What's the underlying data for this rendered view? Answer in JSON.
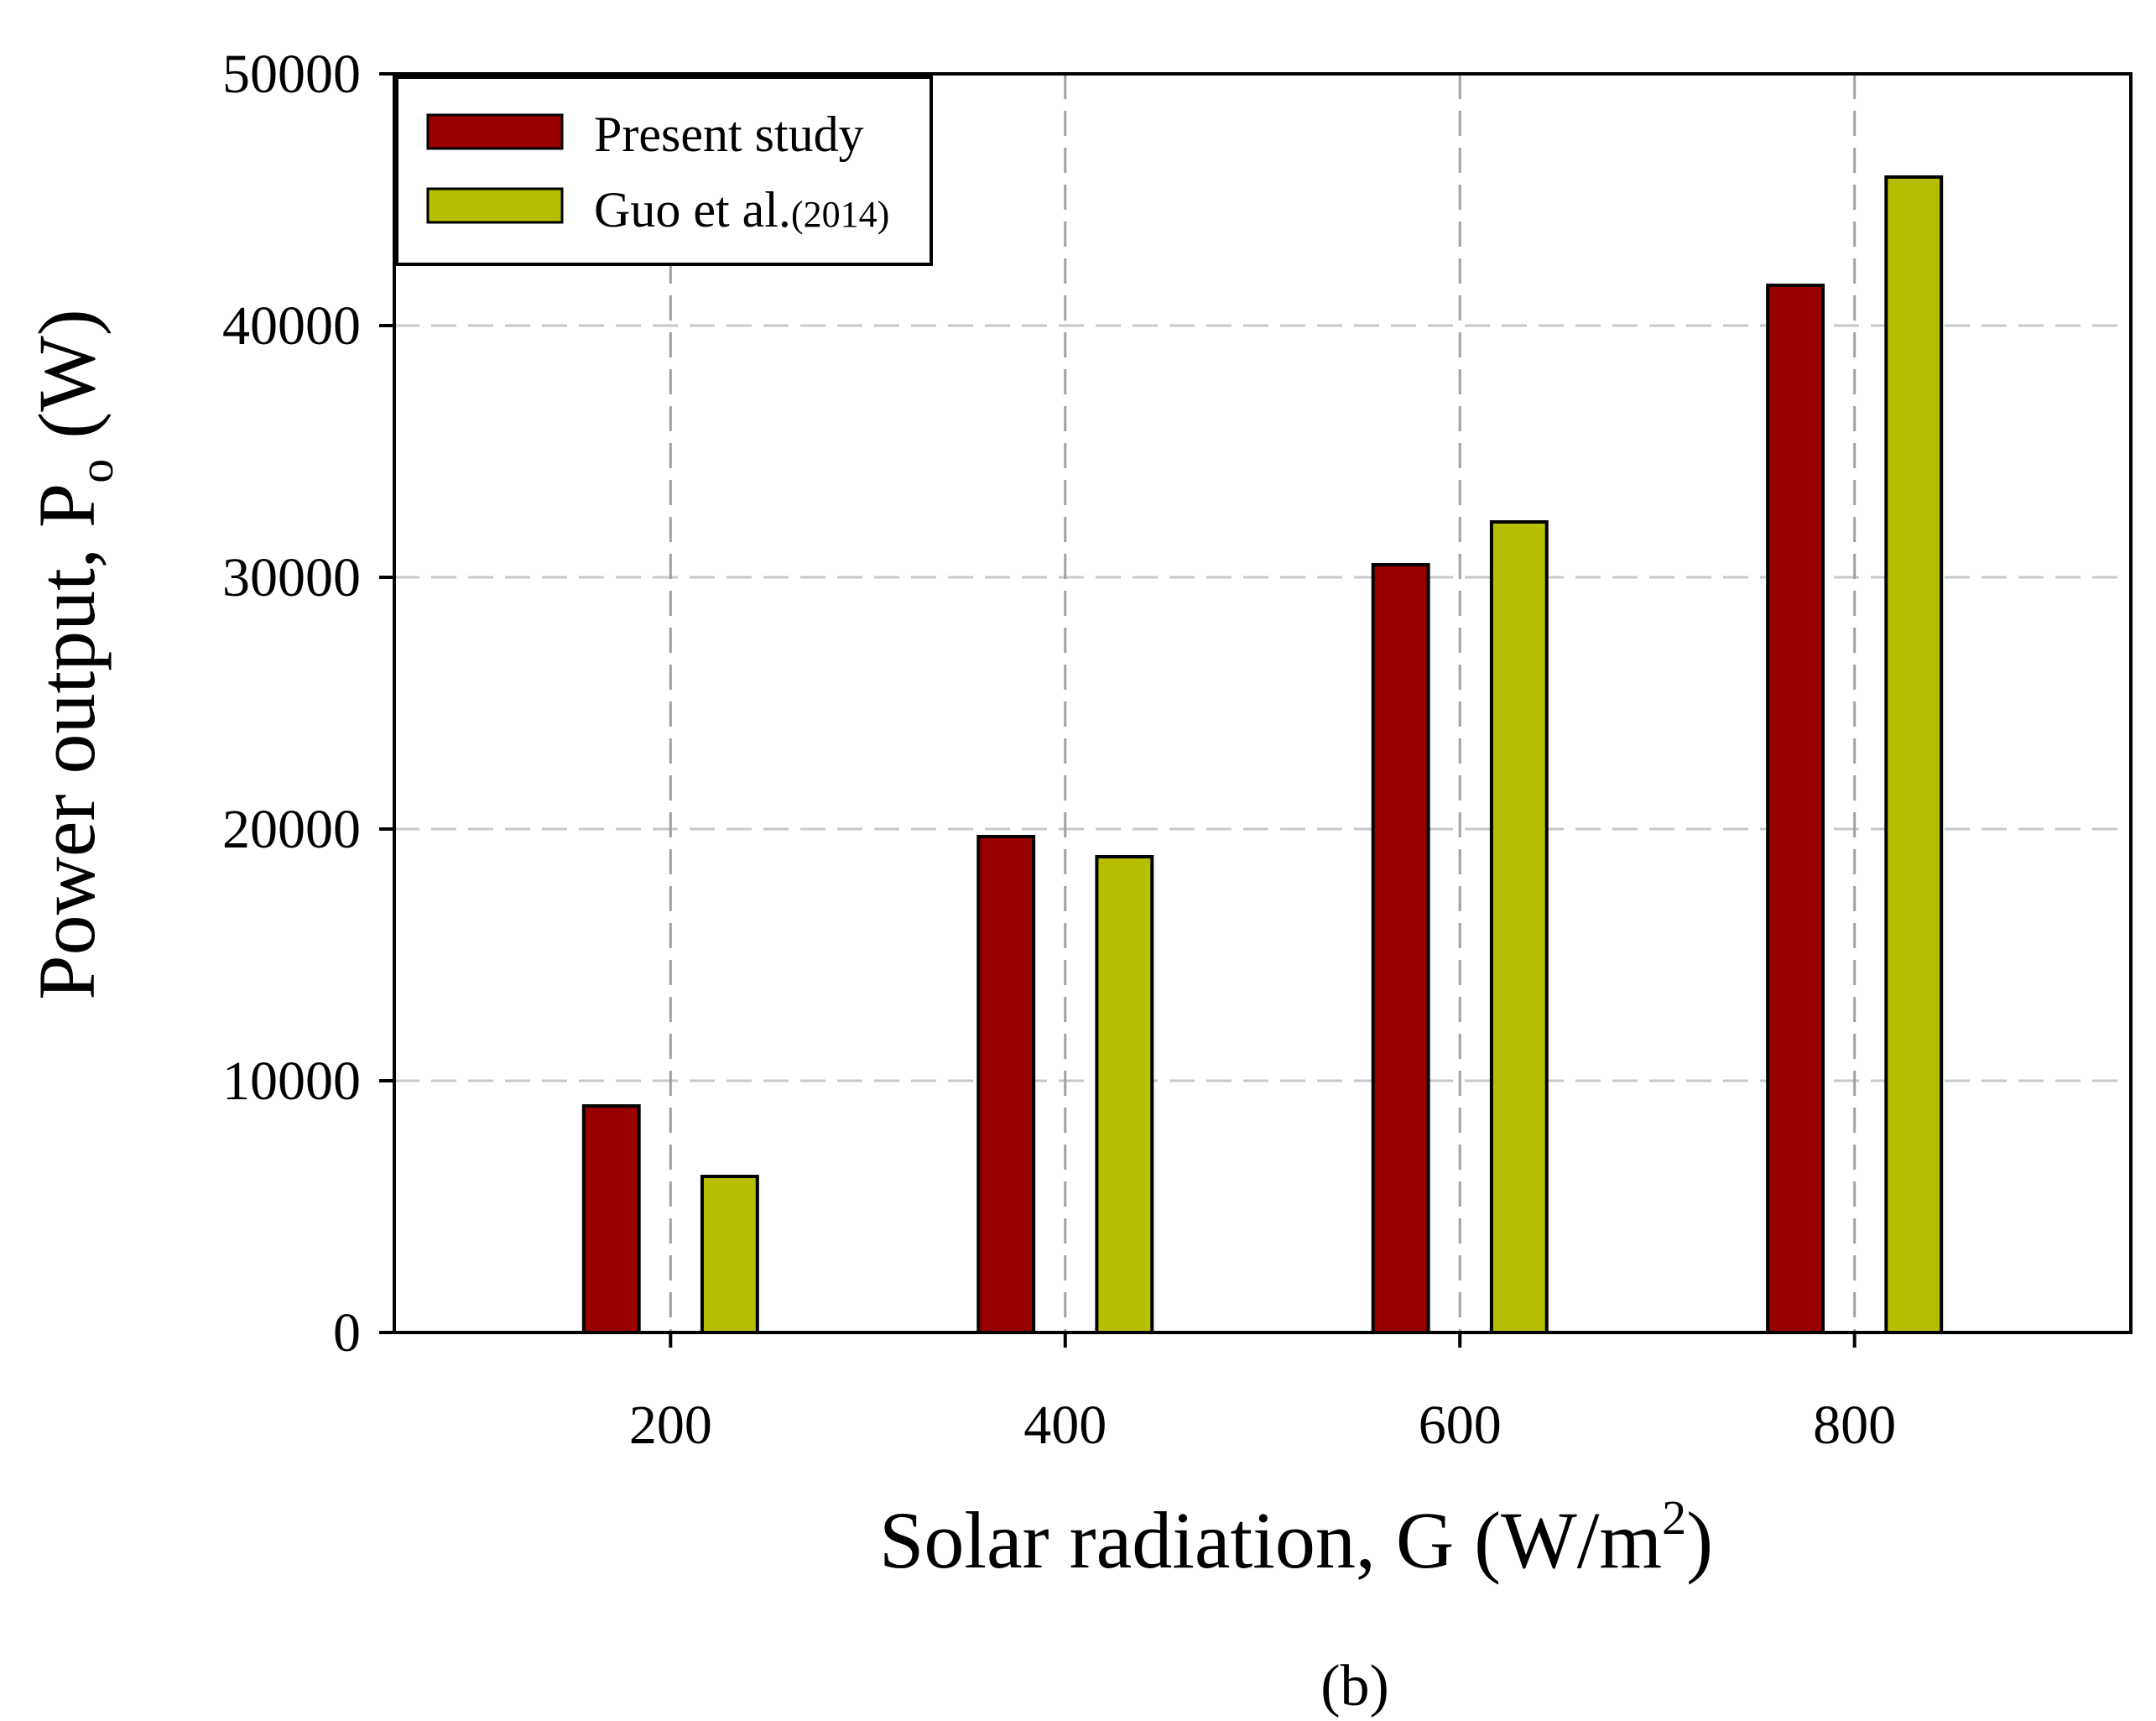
{
  "chart_data": {
    "type": "bar",
    "title": "",
    "panel_label": "(b)",
    "xlabel": "Solar radiation, G (W/m",
    "xlabel_superscript": "2",
    "xlabel_suffix": ")",
    "ylabel": "Power output, P",
    "ylabel_subscript": "o",
    "ylabel_suffix": " (W)",
    "categories": [
      200,
      400,
      600,
      800
    ],
    "xlim": [
      60,
      940
    ],
    "ylim": [
      0,
      50000
    ],
    "yticks": [
      0,
      10000,
      20000,
      30000,
      40000,
      50000
    ],
    "grid": true,
    "legend_position": "top-left",
    "series": [
      {
        "name": "Present study",
        "color": "#990000",
        "values": [
          9000,
          19700,
          30500,
          41600
        ]
      },
      {
        "name": "Guo et al.",
        "name_suffix": "(2014)",
        "color": "#b5bf00",
        "values": [
          6200,
          18900,
          32200,
          45900
        ]
      }
    ]
  }
}
